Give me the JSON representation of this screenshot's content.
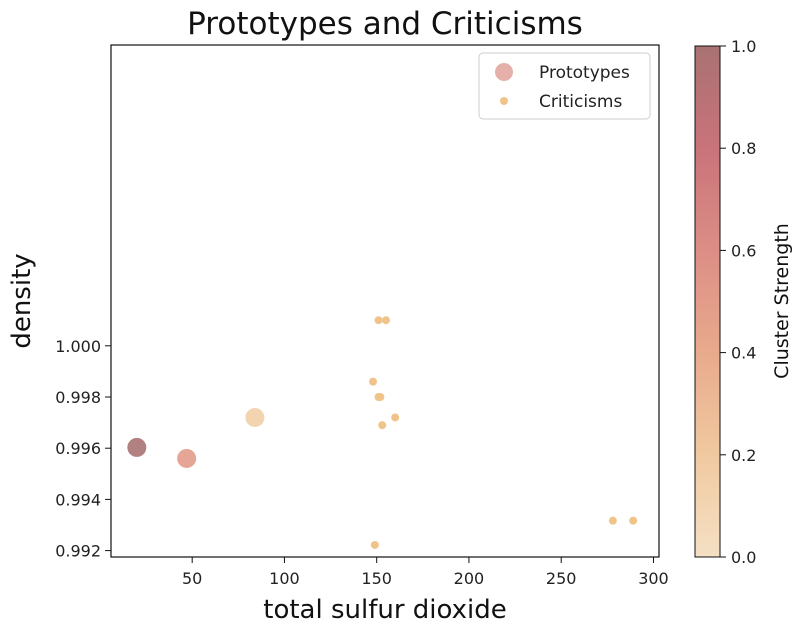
{
  "chart_data": {
    "type": "scatter",
    "title": "Prototypes and Criticisms",
    "xlabel": "total sulfur dioxide",
    "ylabel": "density",
    "xlim": [
      6,
      303
    ],
    "ylim": [
      0.99175,
      1.01175
    ],
    "xticks": [
      50,
      100,
      150,
      200,
      250,
      300
    ],
    "yticks": [
      0.992,
      0.994,
      0.996,
      0.998,
      1.0
    ],
    "ytick_labels": [
      "0.992",
      "0.994",
      "0.996",
      "0.998",
      "1.000"
    ],
    "legend_position": "top-right",
    "series": [
      {
        "name": "Prototypes",
        "points": [
          {
            "x": 20,
            "y": 0.99603,
            "strength": 1.0
          },
          {
            "x": 47,
            "y": 0.9956,
            "strength": 0.5
          },
          {
            "x": 84,
            "y": 0.9972,
            "strength": 0.15
          }
        ]
      },
      {
        "name": "Criticisms",
        "points": [
          {
            "x": 151,
            "y": 1.001
          },
          {
            "x": 155,
            "y": 1.001
          },
          {
            "x": 148,
            "y": 0.9986
          },
          {
            "x": 151,
            "y": 0.998
          },
          {
            "x": 152,
            "y": 0.998
          },
          {
            "x": 160,
            "y": 0.9972
          },
          {
            "x": 153,
            "y": 0.9969
          },
          {
            "x": 278,
            "y": 0.99317
          },
          {
            "x": 289,
            "y": 0.99317
          },
          {
            "x": 149,
            "y": 0.99222
          }
        ]
      }
    ],
    "colorbar": {
      "label": "Cluster Strength",
      "range": [
        0.0,
        1.0
      ],
      "ticks": [
        "0.0",
        "0.2",
        "0.4",
        "0.6",
        "0.8",
        "1.0"
      ],
      "gradient": [
        "#f5e0c4",
        "#f0c9a0",
        "#e8aa8c",
        "#dc8e86",
        "#c9737a",
        "#a97273"
      ]
    },
    "colors": {
      "criticism": "#f0c489",
      "prototype_low": "#f5e0c4",
      "prototype_high": "#a97273"
    }
  }
}
